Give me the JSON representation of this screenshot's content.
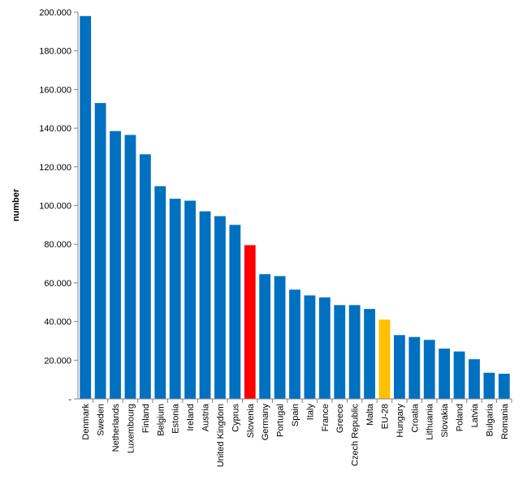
{
  "chart_data": {
    "type": "bar",
    "title": "",
    "xlabel": "",
    "ylabel": "number",
    "ylim": [
      0,
      200000
    ],
    "yticks": [
      0,
      20000,
      40000,
      60000,
      80000,
      100000,
      120000,
      140000,
      160000,
      180000,
      200000
    ],
    "ytick_labels": [
      "-",
      "20.000",
      "40.000",
      "60.000",
      "80.000",
      "100.000",
      "120.000",
      "140.000",
      "160.000",
      "180.000",
      "200.000"
    ],
    "grid": false,
    "categories": [
      "Denmark",
      "Sweden",
      "Netherlands",
      "Luxembourg",
      "Finland",
      "Belgium",
      "Estonia",
      "Ireland",
      "Austria",
      "United Kingdom",
      "Cyprus",
      "Slovenia",
      "Germany",
      "Portugal",
      "Spain",
      "Italy",
      "France",
      "Greece",
      "Czech Republic",
      "Malta",
      "EU-28",
      "Hungary",
      "Croatia",
      "Lithuania",
      "Slovakia",
      "Poland",
      "Latvia",
      "Bulgaria",
      "Romania"
    ],
    "values": [
      198000,
      153000,
      138500,
      136500,
      126500,
      110000,
      103500,
      102500,
      97000,
      94500,
      90000,
      79500,
      64500,
      63500,
      56500,
      53500,
      52500,
      48500,
      48500,
      46500,
      41000,
      33000,
      32000,
      30500,
      26000,
      24500,
      20500,
      13500,
      13000
    ],
    "colors": {
      "default": "#0070C0",
      "highlight": "#FF0000",
      "aggregate": "#FFC000"
    },
    "highlight_category": "Slovenia",
    "aggregate_category": "EU-28"
  }
}
